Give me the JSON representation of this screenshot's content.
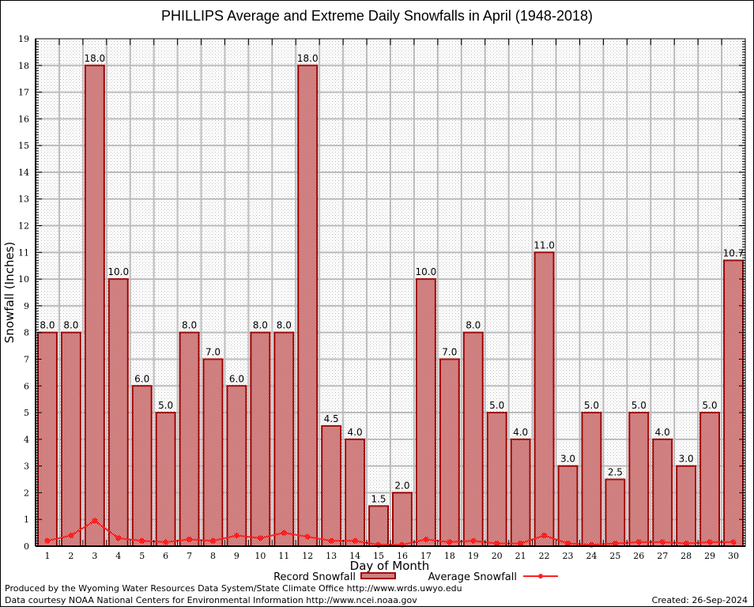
{
  "chart_data": {
    "type": "bar",
    "title": "PHILLIPS Average and Extreme Daily Snowfalls in April (1948-2018)",
    "xlabel": "Day of Month",
    "ylabel": "Snowfall (Inches)",
    "ylim": [
      0,
      19
    ],
    "yticks": [
      "0",
      "1",
      "2",
      "3",
      "4",
      "5",
      "6",
      "7",
      "8",
      "9",
      "10",
      "11",
      "12",
      "13",
      "14",
      "15",
      "16",
      "17",
      "18",
      "19"
    ],
    "grid": true,
    "legend_position": "bottom-center",
    "categories": [
      "1",
      "2",
      "3",
      "4",
      "5",
      "6",
      "7",
      "8",
      "9",
      "10",
      "11",
      "12",
      "13",
      "14",
      "15",
      "16",
      "17",
      "18",
      "19",
      "20",
      "21",
      "22",
      "23",
      "24",
      "25",
      "26",
      "27",
      "28",
      "29",
      "30"
    ],
    "series": [
      {
        "name": "Record Snowfall",
        "type": "bar",
        "color": "#a00000",
        "values": [
          8.0,
          8.0,
          18.0,
          10.0,
          6.0,
          5.0,
          8.0,
          7.0,
          6.0,
          8.0,
          8.0,
          18.0,
          4.5,
          4.0,
          1.5,
          2.0,
          10.0,
          7.0,
          8.0,
          5.0,
          4.0,
          11.0,
          3.0,
          5.0,
          2.5,
          5.0,
          4.0,
          3.0,
          5.0,
          10.7
        ],
        "labels": [
          "8.0",
          "8.0",
          "18.0",
          "10.0",
          "6.0",
          "5.0",
          "8.0",
          "7.0",
          "6.0",
          "8.0",
          "8.0",
          "18.0",
          "4.5",
          "4.0",
          "1.5",
          "2.0",
          "10.0",
          "7.0",
          "8.0",
          "5.0",
          "4.0",
          "11.0",
          "3.0",
          "5.0",
          "2.5",
          "5.0",
          "4.0",
          "3.0",
          "5.0",
          "10.7"
        ]
      },
      {
        "name": "Average Snowfall",
        "type": "line",
        "color": "#ff2020",
        "values": [
          0.2,
          0.4,
          0.95,
          0.3,
          0.2,
          0.15,
          0.25,
          0.2,
          0.4,
          0.3,
          0.5,
          0.35,
          0.2,
          0.2,
          0.05,
          0.05,
          0.25,
          0.15,
          0.2,
          0.1,
          0.1,
          0.4,
          0.1,
          0.05,
          0.1,
          0.15,
          0.15,
          0.1,
          0.15,
          0.15
        ]
      }
    ]
  },
  "footer": {
    "line1": "Produced by the Wyoming Water Resources Data System/State Climate Office http://www.wrds.uwyo.edu",
    "line2": "Data courtesy NOAA National Centers for Environmental Information http://www.ncei.noaa.gov",
    "created": "Created:  26-Sep-2024"
  }
}
